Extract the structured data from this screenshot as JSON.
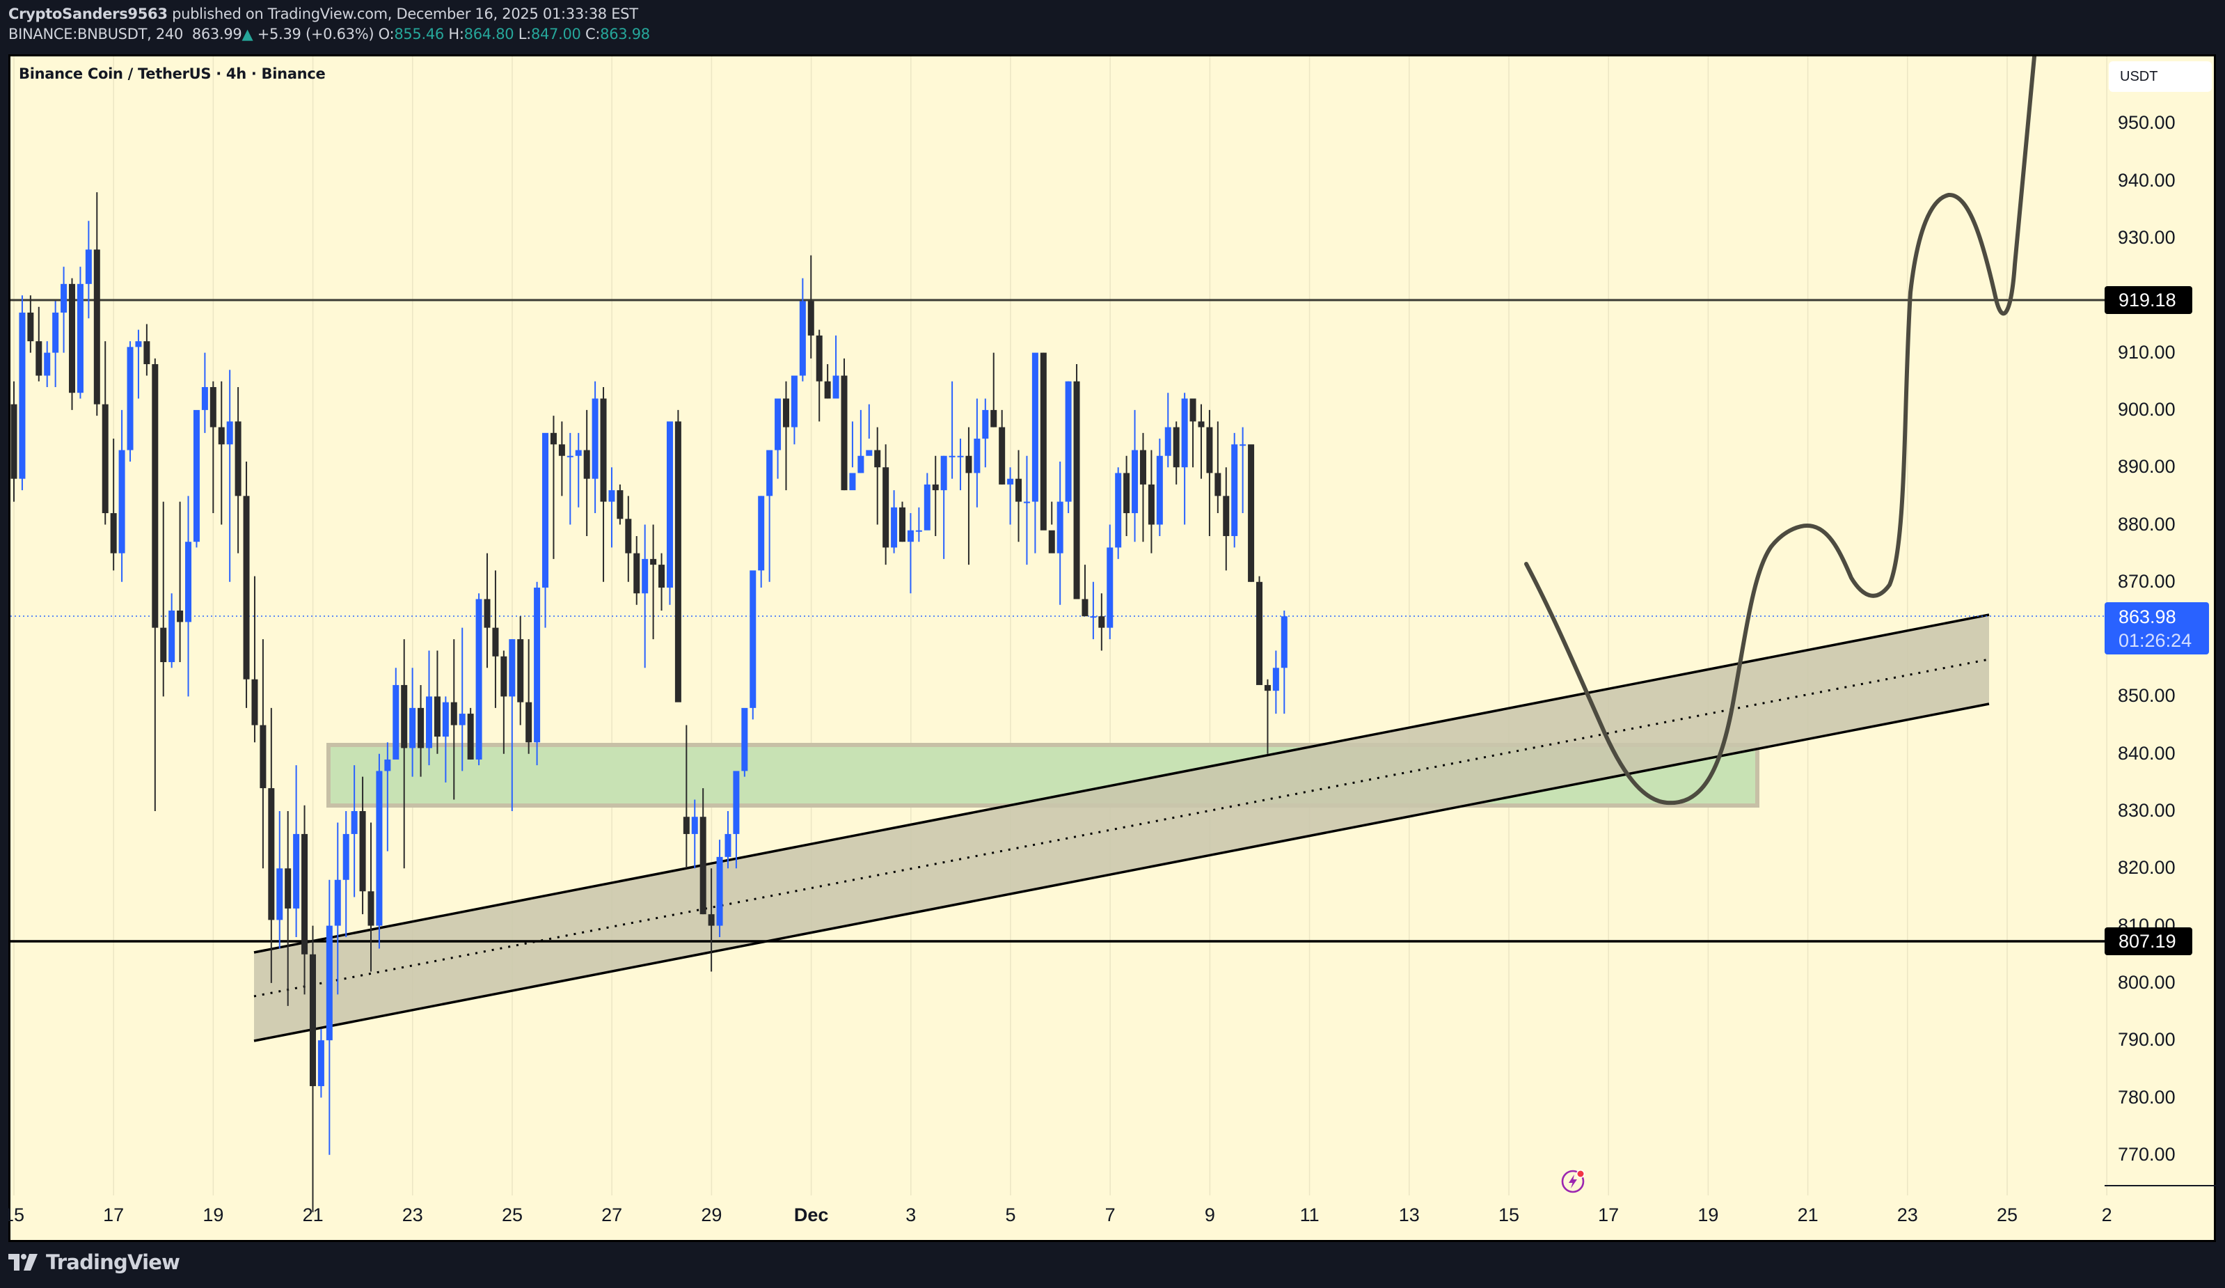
{
  "header": {
    "publisher": "CryptoSanders9563",
    "published_text": " published on TradingView.com, December 16, 2025 01:33:38 EST",
    "symbol_line": "BINANCE:BNBUSDT, 240",
    "last_price": "863.99",
    "change_arrow": "▲",
    "change": "+5.39 (+0.63%)",
    "o_label": "O:",
    "o_value": "855.46",
    "h_label": "H:",
    "h_value": "864.80",
    "l_label": "L:",
    "l_value": "847.00",
    "c_label": "C:",
    "c_value": "863.98"
  },
  "chart_title": "Binance Coin / TetherUS · 4h · Binance",
  "currency_button": "USDT",
  "price_tags": {
    "resistance": "919.18",
    "support": "807.19",
    "current_price": "863.98",
    "countdown": "01:26:24"
  },
  "footer": {
    "brand": "TradingView"
  },
  "colors": {
    "background": "#fff9d6",
    "bull": "#2962ff",
    "bear": "#2b2b2b",
    "zone_green": "#c8e2b4",
    "channel_fill": "#d1ceb3",
    "projection": "#4d4b40",
    "frame": "#131722"
  },
  "chart_data": {
    "type": "candlestick",
    "title": "Binance Coin / TetherUS · 4h · Binance",
    "symbol": "BINANCE:BNBUSDT",
    "interval": "240",
    "ylabel": "USDT",
    "ylim": [
      765,
      962
    ],
    "y_ticks": [
      950,
      940,
      930,
      920,
      910,
      900,
      890,
      880,
      870,
      860,
      850,
      840,
      830,
      820,
      810,
      800,
      790,
      780,
      770
    ],
    "y_tick_labels": [
      "950.00",
      "940.00",
      "930.00",
      "910.00",
      "900.00",
      "890.00",
      "880.00",
      "870.00",
      "850.00",
      "840.00",
      "830.00",
      "820.00",
      "810.00",
      "800.00",
      "790.00",
      "780.00",
      "770.00"
    ],
    "x_tick_labels": [
      "15",
      "17",
      "19",
      "21",
      "23",
      "25",
      "27",
      "29",
      "Dec",
      "3",
      "5",
      "7",
      "9",
      "11",
      "13",
      "15",
      "17",
      "19",
      "21",
      "23",
      "25",
      "2"
    ],
    "grid": true,
    "horizontal_levels": [
      919.18,
      807.19
    ],
    "current_price": 863.98,
    "demand_zone": {
      "top": 841.5,
      "bottom": 831,
      "from": "Nov 21",
      "to": "Dec 20"
    },
    "ascending_channel": {
      "start": "Nov 20",
      "end": "Dec 25",
      "upper_start": 809,
      "upper_end": 864,
      "lower_start": 790,
      "lower_end": 849
    },
    "projection_path_prices": [
      872,
      831,
      857,
      880,
      868,
      919,
      938,
      917,
      965
    ],
    "ohlc": [
      [
        901,
        905,
        884,
        888
      ],
      [
        888,
        920,
        886,
        917
      ],
      [
        917,
        920,
        910,
        912
      ],
      [
        912,
        918,
        905,
        906
      ],
      [
        906,
        912,
        904,
        910
      ],
      [
        910,
        919,
        904,
        917
      ],
      [
        917,
        925,
        910,
        922
      ],
      [
        922,
        923,
        900,
        903
      ],
      [
        903,
        925,
        902,
        922
      ],
      [
        922,
        933,
        916,
        928
      ],
      [
        928,
        938,
        899,
        901
      ],
      [
        901,
        912,
        880,
        882
      ],
      [
        882,
        895,
        872,
        875
      ],
      [
        875,
        900,
        870,
        893
      ],
      [
        893,
        912,
        891,
        911
      ],
      [
        911,
        914,
        902,
        912
      ],
      [
        912,
        915,
        906,
        908
      ],
      [
        908,
        909,
        830,
        862
      ],
      [
        862,
        884,
        850,
        856
      ],
      [
        856,
        868,
        855,
        865
      ],
      [
        865,
        884,
        856,
        863
      ],
      [
        863,
        885,
        850,
        877
      ],
      [
        877,
        897,
        876,
        900
      ],
      [
        900,
        910,
        896,
        904
      ],
      [
        904,
        905,
        882,
        897
      ],
      [
        897,
        905,
        880,
        894
      ],
      [
        894,
        907,
        870,
        898
      ],
      [
        898,
        904,
        875,
        885
      ],
      [
        885,
        891,
        848,
        853
      ],
      [
        853,
        871,
        842,
        845
      ],
      [
        845,
        860,
        820,
        834
      ],
      [
        834,
        848,
        800,
        811
      ],
      [
        811,
        830,
        806,
        820
      ],
      [
        820,
        830,
        796,
        813
      ],
      [
        813,
        838,
        808,
        826
      ],
      [
        826,
        831,
        798,
        805
      ],
      [
        805,
        810,
        760,
        782
      ],
      [
        782,
        792,
        780,
        790
      ],
      [
        790,
        818,
        770,
        810
      ],
      [
        810,
        828,
        798,
        818
      ],
      [
        818,
        830,
        808,
        826
      ],
      [
        826,
        838,
        815,
        830
      ],
      [
        830,
        836,
        812,
        816
      ],
      [
        816,
        828,
        802,
        810
      ],
      [
        810,
        840,
        806,
        837
      ],
      [
        837,
        842,
        823,
        839
      ],
      [
        839,
        855,
        840,
        852
      ],
      [
        852,
        860,
        820,
        841
      ],
      [
        841,
        855,
        836,
        848
      ],
      [
        848,
        852,
        836,
        841
      ],
      [
        841,
        858,
        838,
        850
      ],
      [
        850,
        858,
        840,
        843
      ],
      [
        843,
        850,
        835,
        849
      ],
      [
        849,
        860,
        832,
        845
      ],
      [
        845,
        862,
        837,
        847
      ],
      [
        847,
        848,
        839,
        839
      ],
      [
        839,
        868,
        838,
        867
      ],
      [
        867,
        875,
        855,
        862
      ],
      [
        862,
        872,
        848,
        857
      ],
      [
        857,
        858,
        840,
        850
      ],
      [
        850,
        860,
        830,
        860
      ],
      [
        860,
        864,
        845,
        849
      ],
      [
        849,
        860,
        840,
        842
      ],
      [
        842,
        870,
        838,
        869
      ],
      [
        869,
        890,
        862,
        896
      ],
      [
        896,
        899,
        874,
        894
      ],
      [
        894,
        898,
        885,
        892
      ],
      [
        892,
        896,
        880,
        892
      ],
      [
        892,
        896,
        883,
        893
      ],
      [
        893,
        900,
        878,
        888
      ],
      [
        888,
        905,
        882,
        902
      ],
      [
        902,
        904,
        870,
        884
      ],
      [
        884,
        890,
        876,
        886
      ],
      [
        886,
        887,
        880,
        881
      ],
      [
        881,
        885,
        870,
        875
      ],
      [
        875,
        878,
        866,
        868
      ],
      [
        868,
        880,
        855,
        874
      ],
      [
        874,
        880,
        860,
        873
      ],
      [
        873,
        875,
        865,
        869
      ],
      [
        869,
        890,
        866,
        898
      ],
      [
        898,
        900,
        860,
        849
      ],
      [
        829,
        845,
        820,
        826
      ],
      [
        826,
        832,
        820,
        829
      ],
      [
        829,
        834,
        812,
        812
      ],
      [
        812,
        820,
        802,
        810
      ],
      [
        810,
        825,
        808,
        822
      ],
      [
        822,
        830,
        820,
        826
      ],
      [
        826,
        836,
        820,
        837
      ],
      [
        837,
        847,
        836,
        848
      ],
      [
        848,
        870,
        846,
        872
      ],
      [
        872,
        885,
        869,
        885
      ],
      [
        885,
        891,
        870,
        893
      ],
      [
        893,
        901,
        888,
        902
      ],
      [
        902,
        905,
        886,
        897
      ],
      [
        897,
        905,
        894,
        906
      ],
      [
        906,
        923,
        905,
        919
      ],
      [
        919,
        927,
        909,
        913
      ],
      [
        913,
        914,
        898,
        905
      ],
      [
        905,
        908,
        902,
        902
      ],
      [
        902,
        913,
        905,
        906
      ],
      [
        906,
        909,
        886,
        886
      ],
      [
        886,
        898,
        890,
        889
      ],
      [
        889,
        900,
        889,
        892
      ],
      [
        892,
        901,
        895,
        893
      ],
      [
        893,
        897,
        880,
        890
      ],
      [
        890,
        894,
        873,
        876
      ],
      [
        876,
        886,
        875,
        883
      ],
      [
        883,
        884,
        877,
        877
      ],
      [
        877,
        882,
        868,
        879
      ],
      [
        879,
        883,
        877,
        879
      ],
      [
        879,
        889,
        882,
        887
      ],
      [
        887,
        892,
        878,
        886
      ],
      [
        886,
        892,
        874,
        892
      ],
      [
        892,
        905,
        888,
        892
      ],
      [
        892,
        895,
        886,
        892
      ],
      [
        892,
        897,
        873,
        889
      ],
      [
        889,
        902,
        883,
        895
      ],
      [
        895,
        902,
        890,
        900
      ],
      [
        900,
        910,
        897,
        897
      ],
      [
        897,
        900,
        887,
        887
      ],
      [
        887,
        890,
        880,
        888
      ],
      [
        888,
        893,
        877,
        884
      ],
      [
        884,
        892,
        873,
        884
      ],
      [
        884,
        908,
        875,
        910
      ],
      [
        910,
        910,
        880,
        879
      ],
      [
        879,
        884,
        880,
        875
      ],
      [
        875,
        891,
        866,
        884
      ],
      [
        884,
        905,
        882,
        905
      ],
      [
        905,
        908,
        868,
        867
      ],
      [
        867,
        873,
        865,
        864
      ],
      [
        864,
        870,
        860,
        864
      ],
      [
        864,
        868,
        858,
        862
      ],
      [
        862,
        880,
        860,
        876
      ],
      [
        876,
        890,
        874,
        889
      ],
      [
        889,
        892,
        878,
        882
      ],
      [
        882,
        900,
        877,
        893
      ],
      [
        893,
        896,
        877,
        887
      ],
      [
        887,
        893,
        875,
        880
      ],
      [
        880,
        895,
        878,
        892
      ],
      [
        892,
        903,
        890,
        897
      ],
      [
        897,
        898,
        887,
        890
      ],
      [
        890,
        903,
        880,
        902
      ],
      [
        902,
        900,
        890,
        898
      ],
      [
        898,
        901,
        888,
        897
      ],
      [
        897,
        900,
        878,
        889
      ],
      [
        889,
        898,
        882,
        885
      ],
      [
        885,
        890,
        872,
        878
      ],
      [
        878,
        896,
        876,
        894
      ],
      [
        894,
        897,
        882,
        894
      ],
      [
        894,
        892,
        870,
        870
      ],
      [
        870,
        871,
        853,
        852
      ],
      [
        852,
        853,
        840,
        851
      ],
      [
        851,
        858,
        847,
        855
      ],
      [
        855,
        865,
        847,
        864
      ]
    ]
  }
}
